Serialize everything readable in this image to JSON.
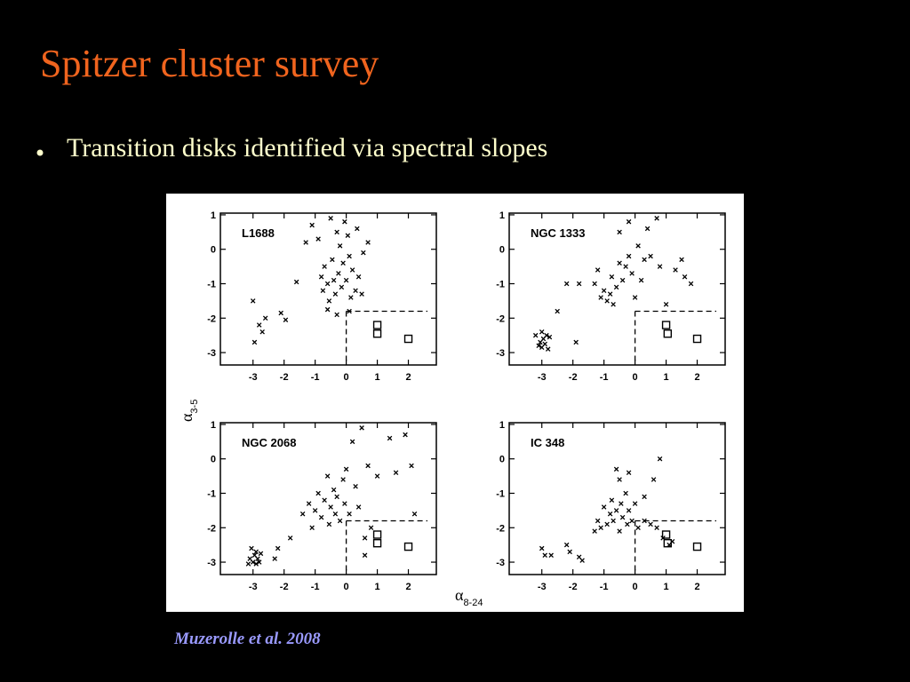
{
  "header": {
    "title": "Spitzer cluster survey"
  },
  "bullets": [
    "Transition disks identified via spectral slopes"
  ],
  "citation": "Muzerolle et al. 2008",
  "figure_labels": {
    "ylabel": {
      "symbol": "α",
      "subscript": "3-5"
    },
    "xlabel": {
      "symbol": "α",
      "subscript": "8-24"
    }
  },
  "chart_data": [
    {
      "type": "scatter",
      "title": "L1688",
      "xlim": [
        -4.05,
        2.9
      ],
      "ylim": [
        -3.36,
        1.05
      ],
      "xticks": [
        -3,
        -2,
        -1,
        0,
        1,
        2
      ],
      "yticks": [
        -3,
        -2,
        -1,
        0,
        1
      ],
      "threshold": {
        "x": 0,
        "y": -1.8
      },
      "series": [
        {
          "marker": "x",
          "color": "#000000",
          "x": [
            -3,
            -2.95,
            -2.8,
            -2.7,
            -2.6,
            -2.1,
            -1.95,
            -1.6,
            -1.3,
            -1.1,
            -0.9,
            -0.8,
            -0.75,
            -0.7,
            -0.6,
            -0.55,
            -0.5,
            -0.45,
            -0.4,
            -0.35,
            -0.3,
            -0.25,
            -0.2,
            -0.15,
            -0.1,
            -0.05,
            0,
            0.05,
            0.1,
            0.15,
            0.2,
            0.3,
            0.35,
            0.4,
            0.5,
            0.55,
            0.7,
            0.1,
            -0.6,
            -0.3
          ],
          "y": [
            -1.5,
            -2.7,
            -2.2,
            -2.4,
            -2.0,
            -1.85,
            -2.05,
            -0.95,
            0.2,
            0.7,
            0.3,
            -0.8,
            -1.2,
            -0.5,
            -1.0,
            -1.5,
            0.9,
            -0.3,
            -0.9,
            -1.3,
            0.5,
            -0.7,
            0.1,
            -1.1,
            -0.4,
            0.8,
            -0.9,
            0.4,
            -0.2,
            -1.4,
            -0.6,
            -1.2,
            0.6,
            -0.8,
            -1.3,
            -0.1,
            0.2,
            -1.8,
            -1.75,
            -1.9
          ]
        },
        {
          "marker": "square",
          "color": "#000000",
          "x": [
            1,
            1,
            2
          ],
          "y": [
            -2.2,
            -2.45,
            -2.6
          ]
        }
      ]
    },
    {
      "type": "scatter",
      "title": "NGC 1333",
      "xlim": [
        -4.05,
        2.9
      ],
      "ylim": [
        -3.36,
        1.05
      ],
      "xticks": [
        -3,
        -2,
        -1,
        0,
        1,
        2
      ],
      "yticks": [
        -3,
        -2,
        -1,
        0,
        1
      ],
      "threshold": {
        "x": 0,
        "y": -1.8
      },
      "series": [
        {
          "marker": "x",
          "color": "#000000",
          "x": [
            -3.1,
            -3.05,
            -3,
            -2.95,
            -2.9,
            -2.85,
            -2.8,
            -3.2,
            -2.75,
            -3.0,
            -2.5,
            -2.2,
            -1.8,
            -1.9,
            -1.3,
            -1.2,
            -1.1,
            -1,
            -0.9,
            -0.8,
            -0.75,
            -0.7,
            -0.6,
            -0.5,
            -0.4,
            -0.3,
            -0.2,
            -0.1,
            0,
            0.1,
            0.2,
            0.3,
            0.4,
            0.5,
            0.7,
            0.8,
            1,
            1.3,
            1.5,
            1.6,
            1.8,
            -0.5,
            -0.2
          ],
          "y": [
            -2.8,
            -2.7,
            -2.85,
            -2.6,
            -2.75,
            -2.5,
            -2.9,
            -2.5,
            -2.55,
            -2.4,
            -1.8,
            -1.0,
            -1.0,
            -2.7,
            -1.0,
            -0.6,
            -1.4,
            -1.2,
            -1.5,
            -1.3,
            -0.8,
            -1.6,
            -1.1,
            -0.4,
            -0.9,
            -0.5,
            -0.2,
            -0.7,
            -1.4,
            0.1,
            -0.9,
            -0.3,
            0.6,
            -0.2,
            0.9,
            -0.5,
            -1.6,
            -0.6,
            -0.3,
            -0.8,
            -1.0,
            0.5,
            0.8
          ]
        },
        {
          "marker": "square",
          "color": "#000000",
          "x": [
            1,
            1.05,
            2
          ],
          "y": [
            -2.2,
            -2.45,
            -2.6
          ]
        }
      ]
    },
    {
      "type": "scatter",
      "title": "NGC 2068",
      "xlim": [
        -4.05,
        2.9
      ],
      "ylim": [
        -3.36,
        1.05
      ],
      "xticks": [
        -3,
        -2,
        -1,
        0,
        1,
        2
      ],
      "yticks": [
        -3,
        -2,
        -1,
        0,
        1
      ],
      "threshold": {
        "x": 0,
        "y": -1.8
      },
      "series": [
        {
          "marker": "x",
          "color": "#000000",
          "x": [
            -3.1,
            -3.0,
            -2.95,
            -2.9,
            -2.85,
            -3.05,
            -2.8,
            -2.75,
            -3.15,
            -2.9,
            -2.3,
            -2.2,
            -1.8,
            -1.4,
            -1.2,
            -1.1,
            -1.0,
            -0.9,
            -0.8,
            -0.7,
            -0.6,
            -0.55,
            -0.5,
            -0.4,
            -0.35,
            -0.3,
            -0.2,
            -0.1,
            -0.05,
            0,
            0.1,
            0.2,
            0.3,
            0.4,
            0.5,
            0.6,
            0.7,
            0.8,
            1.0,
            1.4,
            1.6,
            1.9,
            2.1,
            2.2,
            0.6
          ],
          "y": [
            -2.9,
            -3.0,
            -2.8,
            -3.05,
            -2.9,
            -2.6,
            -3.0,
            -2.75,
            -3.05,
            -2.7,
            -2.9,
            -2.6,
            -2.3,
            -1.6,
            -1.3,
            -2.0,
            -1.5,
            -1.0,
            -1.7,
            -1.2,
            -0.5,
            -1.9,
            -1.4,
            -0.9,
            -1.6,
            -1.1,
            -1.8,
            -0.6,
            -1.3,
            -0.3,
            -1.6,
            0.5,
            -0.8,
            -1.4,
            0.9,
            -2.3,
            -0.2,
            -2.0,
            -0.5,
            0.6,
            -0.4,
            0.7,
            -0.2,
            -1.6,
            -2.8
          ]
        },
        {
          "marker": "square",
          "color": "#000000",
          "x": [
            1,
            1,
            2
          ],
          "y": [
            -2.2,
            -2.45,
            -2.55
          ]
        }
      ]
    },
    {
      "type": "scatter",
      "title": "IC 348",
      "xlim": [
        -4.05,
        2.9
      ],
      "ylim": [
        -3.36,
        1.05
      ],
      "xticks": [
        -3,
        -2,
        -1,
        0,
        1,
        2
      ],
      "yticks": [
        -3,
        -2,
        -1,
        0,
        1
      ],
      "threshold": {
        "x": 0,
        "y": -1.8
      },
      "series": [
        {
          "marker": "x",
          "color": "#000000",
          "x": [
            -3,
            -2.9,
            -2.7,
            -2.2,
            -2.1,
            -1.8,
            -1.7,
            -1.3,
            -1.2,
            -1.1,
            -1.0,
            -0.9,
            -0.8,
            -0.75,
            -0.7,
            -0.6,
            -0.5,
            -0.45,
            -0.4,
            -0.3,
            -0.25,
            -0.2,
            -0.1,
            0,
            0.1,
            0.3,
            0.5,
            0.7,
            0.9,
            1.1,
            1.2,
            -0.6,
            -0.2,
            0.6,
            0.8,
            -0.5,
            0.3
          ],
          "y": [
            -2.6,
            -2.8,
            -2.8,
            -2.5,
            -2.7,
            -2.85,
            -2.95,
            -2.1,
            -1.8,
            -2.0,
            -1.4,
            -1.9,
            -1.6,
            -1.2,
            -1.8,
            -1.5,
            -2.1,
            -1.3,
            -1.7,
            -1.0,
            -1.9,
            -1.5,
            -1.8,
            -1.3,
            -2.0,
            -1.8,
            -1.9,
            -2.0,
            -2.3,
            -2.5,
            -2.4,
            -0.3,
            -0.4,
            -0.6,
            0.0,
            -0.6,
            -1.1
          ]
        },
        {
          "marker": "square",
          "color": "#000000",
          "x": [
            1,
            1.05,
            2
          ],
          "y": [
            -2.2,
            -2.45,
            -2.55
          ]
        }
      ]
    }
  ]
}
